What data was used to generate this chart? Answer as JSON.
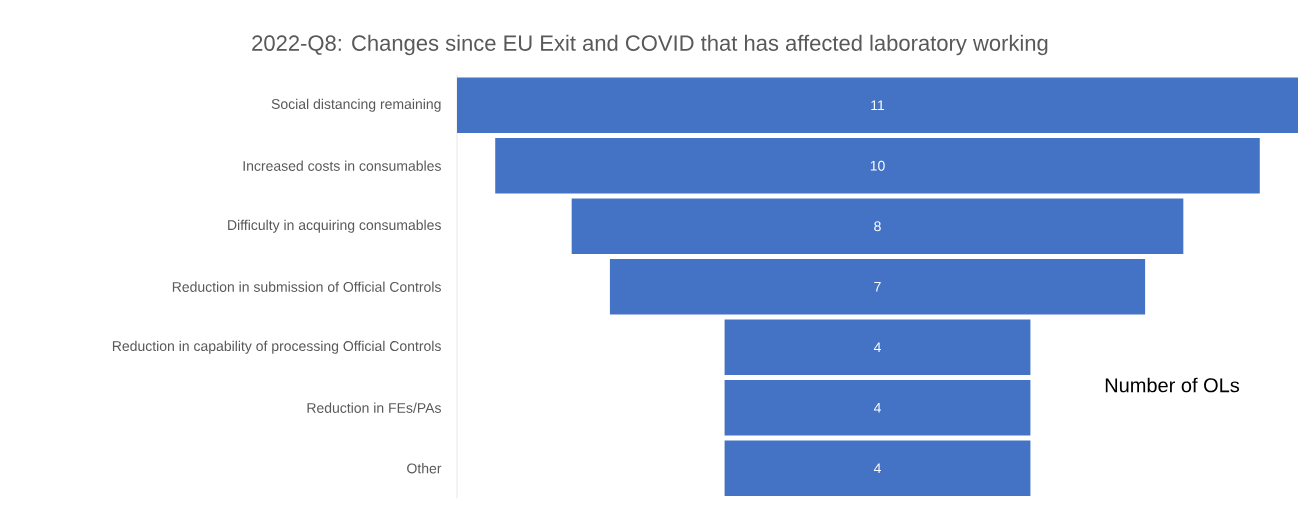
{
  "chart_data": {
    "type": "other",
    "title": "2022-Q8: Changes since EU Exit and COVID that has affected laboratory working",
    "categories": [
      "Social distancing remaining",
      "Increased costs in consumables",
      "Difficulty in acquiring consumables",
      "Reduction in submission of Official Controls",
      "Reduction in capability of processing Official Controls",
      "Reduction in FEs/PAs",
      "Other"
    ],
    "values": [
      11,
      10,
      8,
      7,
      4,
      4,
      4
    ],
    "color": "#4472c4",
    "data_labels": true,
    "annotations": [
      "Number of OLs"
    ]
  }
}
